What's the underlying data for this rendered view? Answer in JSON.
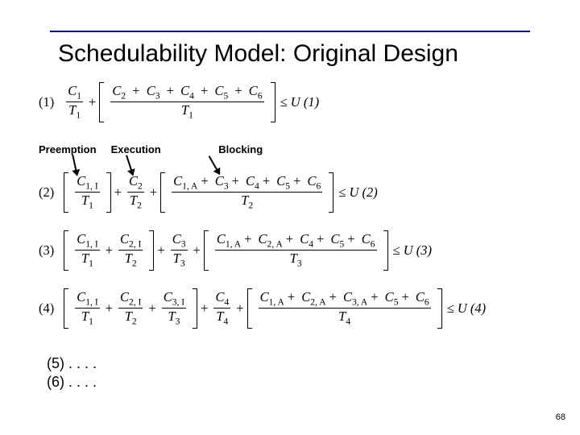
{
  "title": "Schedulability Model: Original Design",
  "labels": {
    "preemption": "Preemption",
    "execution": "Execution",
    "blocking": "Blocking"
  },
  "eq1": {
    "num": "(1)",
    "t1_top": "C",
    "t1_top_sub": "1",
    "t1_bot": "T",
    "t1_bot_sub": "1",
    "blk_top": "C",
    "blk_bot": "T",
    "blk_bot_sub": "1",
    "s2": "2",
    "s3": "3",
    "s4": "4",
    "s5": "5",
    "s6": "6",
    "rhs": "U (1)"
  },
  "eq2": {
    "num": "(2)",
    "p1_top": "C",
    "p1_top_sub": "1, I",
    "p1_bot": "T",
    "p1_bot_sub": "1",
    "ex_top": "C",
    "ex_top_sub": "2",
    "ex_bot": "T",
    "ex_bot_sub": "2",
    "blk_bot": "T",
    "blk_bot_sub": "2",
    "b1": "1, A",
    "b3": "3",
    "b4": "4",
    "b5": "5",
    "b6": "6",
    "rhs": "U (2)"
  },
  "eq3": {
    "num": "(3)",
    "p1_sub": "1, I",
    "p1_b": "1",
    "p2_sub": "2, I",
    "p2_b": "2",
    "ex_sub": "3",
    "ex_b": "3",
    "blk_b": "3",
    "b1": "1, A",
    "b2": "2, A",
    "b4": "4",
    "b5": "5",
    "b6": "6",
    "rhs": "U (3)"
  },
  "eq4": {
    "num": "(4)",
    "p1_sub": "1, I",
    "p1_b": "1",
    "p2_sub": "2, I",
    "p2_b": "2",
    "p3_sub": "3, I",
    "p3_b": "3",
    "ex_sub": "4",
    "ex_b": "4",
    "blk_b": "4",
    "b1": "1, A",
    "b2": "2, A",
    "b3": "3, A",
    "b5": "5",
    "b6": "6",
    "rhs": "U (4)"
  },
  "foot5": "(5) . . . .",
  "foot6": "(6) . . . .",
  "page_number": "68",
  "style": {
    "title_fontsize": 30,
    "label_fontsize": 13,
    "eq_fontsize": 16.5,
    "rule_color": "#000080",
    "background": "#ffffff",
    "text_color": "#000000"
  }
}
